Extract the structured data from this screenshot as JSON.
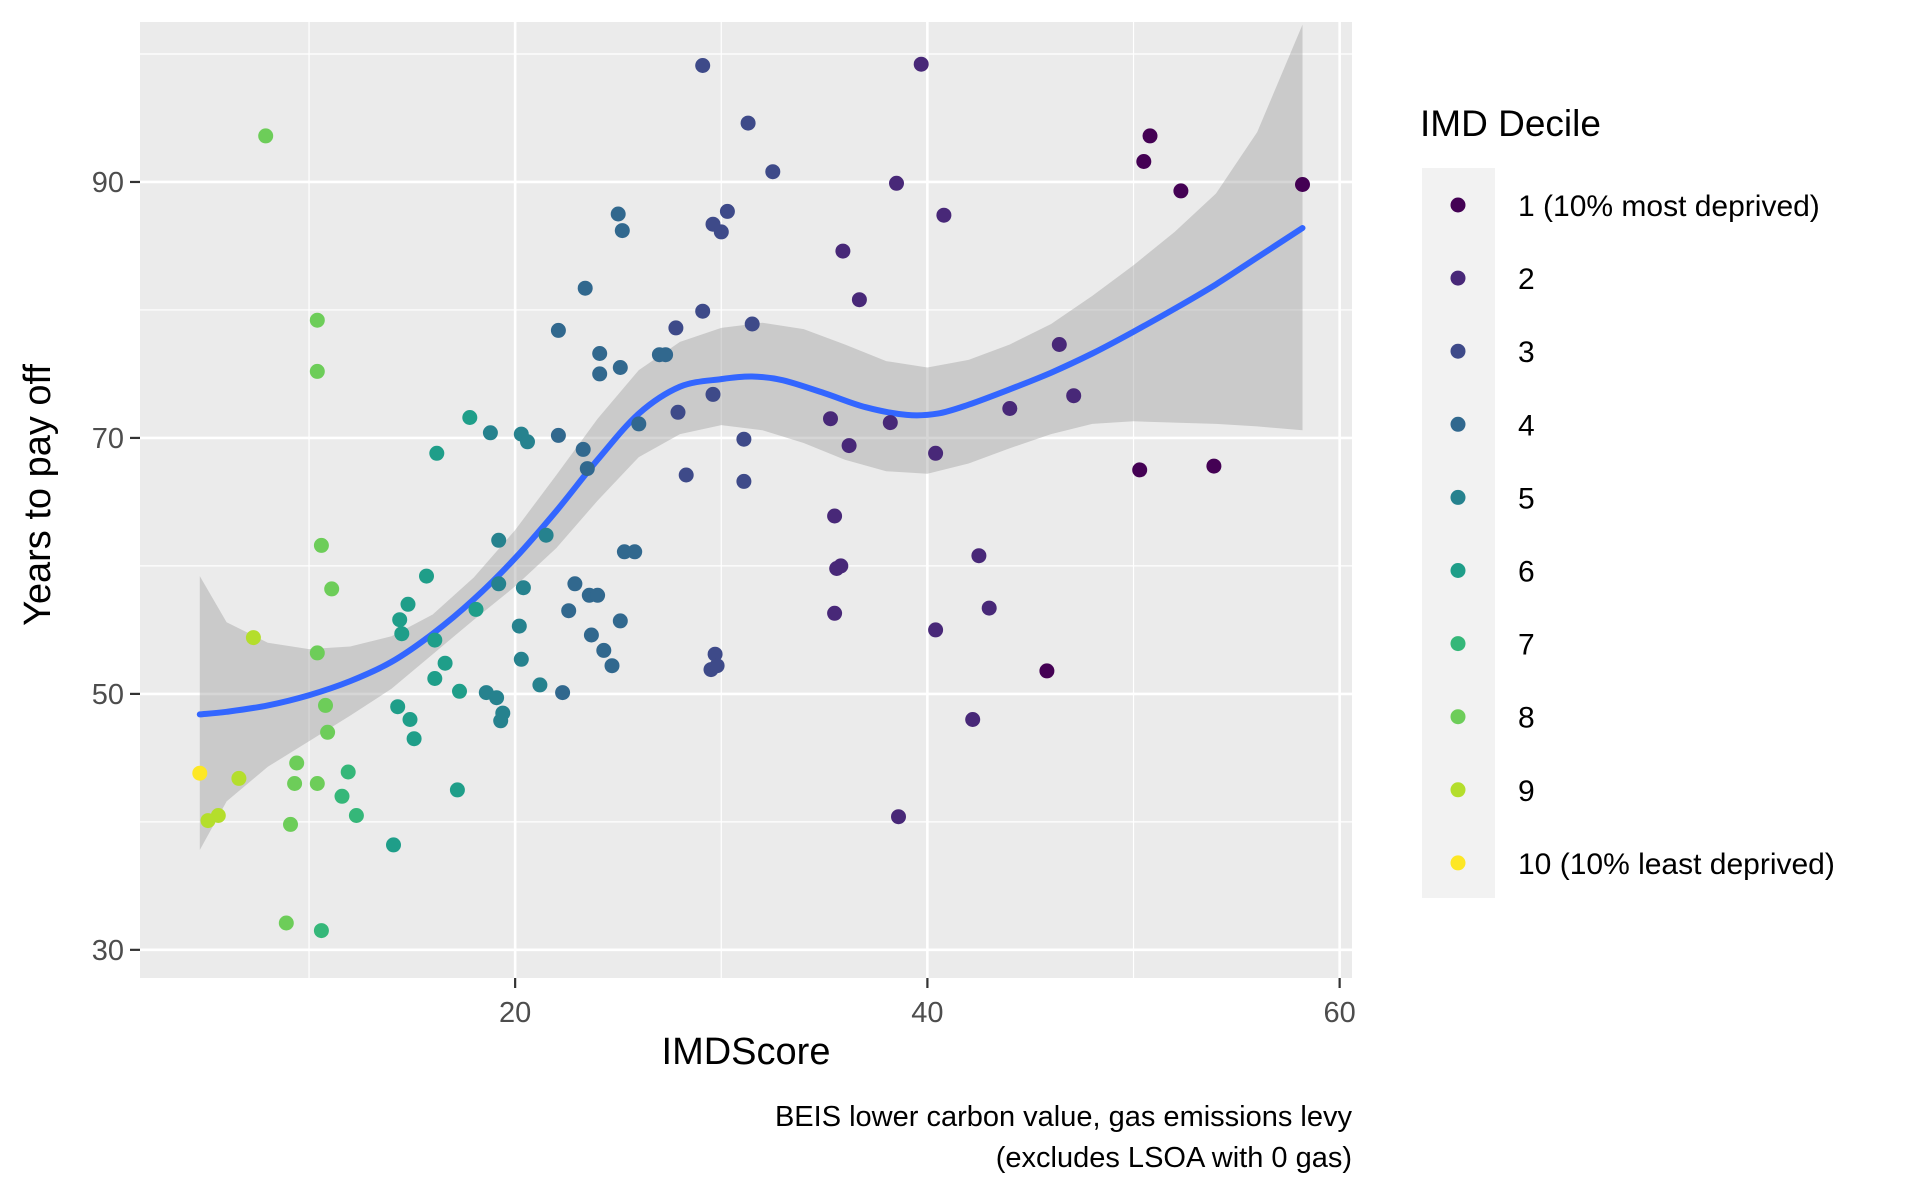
{
  "chart_data": {
    "type": "scatter",
    "xlabel": "IMDScore",
    "ylabel": "Years to pay off",
    "caption_lines": [
      "BEIS lower carbon value, gas emissions levy",
      "(excludes LSOA with 0 gas)"
    ],
    "xlim": [
      1.8,
      60.6
    ],
    "ylim": [
      27.8,
      102.5
    ],
    "x_ticks": [
      20,
      40,
      60
    ],
    "y_ticks": [
      30,
      50,
      70,
      90
    ],
    "x_tick_labels": [
      "20",
      "40",
      "60"
    ],
    "y_tick_labels": [
      "30",
      "50",
      "70",
      "90"
    ],
    "grid": true,
    "legend": {
      "title": "IMD Decile",
      "position": "right",
      "entries": [
        {
          "label": "1 (10% most deprived)",
          "color": "#440154"
        },
        {
          "label": "2",
          "color": "#482878"
        },
        {
          "label": "3",
          "color": "#3E4A89"
        },
        {
          "label": "4",
          "color": "#31688E"
        },
        {
          "label": "5",
          "color": "#26828E"
        },
        {
          "label": "6",
          "color": "#1F9E89"
        },
        {
          "label": "7",
          "color": "#35B779"
        },
        {
          "label": "8",
          "color": "#6DCD59"
        },
        {
          "label": "9",
          "color": "#B4DE2C"
        },
        {
          "label": "10 (10% least deprived)",
          "color": "#FDE725"
        }
      ]
    },
    "series": [
      {
        "decile": 1,
        "points": [
          [
            50.8,
            93.6
          ],
          [
            50.5,
            91.6
          ],
          [
            52.3,
            89.3
          ],
          [
            58.2,
            89.8
          ],
          [
            50.3,
            67.5
          ],
          [
            53.9,
            67.8
          ],
          [
            45.8,
            51.8
          ]
        ]
      },
      {
        "decile": 2,
        "points": [
          [
            39.7,
            99.2
          ],
          [
            38.5,
            89.9
          ],
          [
            40.8,
            87.4
          ],
          [
            35.9,
            84.6
          ],
          [
            36.7,
            80.8
          ],
          [
            46.4,
            77.3
          ],
          [
            47.1,
            73.3
          ],
          [
            44,
            72.3
          ],
          [
            35.3,
            71.5
          ],
          [
            36.2,
            69.4
          ],
          [
            38.2,
            71.2
          ],
          [
            40.4,
            68.8
          ],
          [
            35.5,
            63.9
          ],
          [
            35.6,
            59.8
          ],
          [
            35.8,
            60
          ],
          [
            35.5,
            56.3
          ],
          [
            42.5,
            60.8
          ],
          [
            43,
            56.7
          ],
          [
            40.4,
            55
          ],
          [
            42.2,
            48
          ],
          [
            38.6,
            40.4
          ]
        ]
      },
      {
        "decile": 3,
        "points": [
          [
            29.1,
            99.1
          ],
          [
            31.3,
            94.6
          ],
          [
            32.5,
            90.8
          ],
          [
            29.6,
            86.7
          ],
          [
            30.3,
            87.7
          ],
          [
            30,
            86.1
          ],
          [
            31.5,
            78.9
          ],
          [
            29.1,
            79.9
          ],
          [
            27.8,
            78.6
          ],
          [
            29.6,
            73.4
          ],
          [
            27.9,
            72
          ],
          [
            31.1,
            69.9
          ],
          [
            31.1,
            66.6
          ],
          [
            28.3,
            67.1
          ],
          [
            29.7,
            53.1
          ],
          [
            29.5,
            51.9
          ],
          [
            29.8,
            52.2
          ]
        ]
      },
      {
        "decile": 4,
        "points": [
          [
            25,
            87.5
          ],
          [
            25.2,
            86.2
          ],
          [
            23.4,
            81.7
          ],
          [
            22.1,
            78.4
          ],
          [
            24.1,
            76.6
          ],
          [
            24.1,
            75
          ],
          [
            25.1,
            75.5
          ],
          [
            27,
            76.5
          ],
          [
            27.3,
            76.5
          ],
          [
            26,
            71.1
          ],
          [
            22.1,
            70.2
          ],
          [
            23.3,
            69.1
          ],
          [
            23.5,
            67.6
          ],
          [
            25.3,
            61.1
          ],
          [
            25.8,
            61.1
          ],
          [
            22.9,
            58.6
          ],
          [
            23.6,
            57.7
          ],
          [
            24,
            57.7
          ],
          [
            22.6,
            56.5
          ],
          [
            23.7,
            54.6
          ],
          [
            24.3,
            53.4
          ],
          [
            25.1,
            55.7
          ],
          [
            24.7,
            52.2
          ],
          [
            22.3,
            50.1
          ]
        ]
      },
      {
        "decile": 5,
        "points": [
          [
            18.8,
            70.4
          ],
          [
            20.3,
            70.3
          ],
          [
            20.6,
            69.7
          ],
          [
            19.2,
            62
          ],
          [
            21.5,
            62.4
          ],
          [
            19.2,
            58.6
          ],
          [
            20.4,
            58.3
          ],
          [
            20.2,
            55.3
          ],
          [
            20.3,
            52.7
          ],
          [
            21.2,
            50.7
          ],
          [
            18.6,
            50.1
          ],
          [
            19.1,
            49.7
          ],
          [
            19.4,
            48.5
          ],
          [
            19.3,
            47.9
          ]
        ]
      },
      {
        "decile": 6,
        "points": [
          [
            17.8,
            71.6
          ],
          [
            16.2,
            68.8
          ],
          [
            15.7,
            59.2
          ],
          [
            18.1,
            56.6
          ],
          [
            14.8,
            57
          ],
          [
            14.4,
            55.8
          ],
          [
            14.5,
            54.7
          ],
          [
            16.1,
            54.2
          ],
          [
            16.6,
            52.4
          ],
          [
            16.1,
            51.2
          ],
          [
            17.3,
            50.2
          ],
          [
            14.3,
            49
          ],
          [
            14.9,
            48
          ],
          [
            15.1,
            46.5
          ],
          [
            17.2,
            42.5
          ],
          [
            14.1,
            38.2
          ]
        ]
      },
      {
        "decile": 7,
        "points": [
          [
            11.9,
            43.9
          ],
          [
            11.6,
            42
          ],
          [
            12.3,
            40.5
          ],
          [
            10.6,
            31.5
          ]
        ]
      },
      {
        "decile": 8,
        "points": [
          [
            7.9,
            93.6
          ],
          [
            10.4,
            79.2
          ],
          [
            10.4,
            75.2
          ],
          [
            10.6,
            61.6
          ],
          [
            11.1,
            58.2
          ],
          [
            10.4,
            53.2
          ],
          [
            10.8,
            49.1
          ],
          [
            10.9,
            47
          ],
          [
            9.4,
            44.6
          ],
          [
            9.3,
            43
          ],
          [
            10.4,
            43
          ],
          [
            9.1,
            39.8
          ],
          [
            8.9,
            32.1
          ]
        ]
      },
      {
        "decile": 9,
        "points": [
          [
            7.3,
            54.4
          ],
          [
            6.6,
            43.4
          ],
          [
            5.6,
            40.5
          ],
          [
            5.1,
            40.1
          ]
        ]
      },
      {
        "decile": 10,
        "points": [
          [
            4.7,
            43.8
          ]
        ]
      }
    ],
    "smooth_curve": [
      [
        4.7,
        48.4
      ],
      [
        6,
        48.6
      ],
      [
        8,
        49.1
      ],
      [
        10,
        49.9
      ],
      [
        12,
        51
      ],
      [
        14,
        52.5
      ],
      [
        16,
        54.7
      ],
      [
        18,
        57.4
      ],
      [
        20,
        60.6
      ],
      [
        22,
        64.3
      ],
      [
        24,
        68.3
      ],
      [
        26,
        71.9
      ],
      [
        28,
        74
      ],
      [
        30,
        74.6
      ],
      [
        31.5,
        74.8
      ],
      [
        33,
        74.5
      ],
      [
        35,
        73.5
      ],
      [
        37,
        72.4
      ],
      [
        39,
        71.8
      ],
      [
        40.5,
        71.9
      ],
      [
        42,
        72.6
      ],
      [
        44,
        73.8
      ],
      [
        46,
        75.1
      ],
      [
        48,
        76.6
      ],
      [
        50,
        78.3
      ],
      [
        52,
        80.1
      ],
      [
        54,
        82
      ],
      [
        56,
        84.1
      ],
      [
        58.2,
        86.4
      ]
    ],
    "confidence_band": {
      "upper": [
        [
          4.7,
          59.2
        ],
        [
          6,
          55.6
        ],
        [
          8,
          54
        ],
        [
          10,
          53.5
        ],
        [
          12,
          53.7
        ],
        [
          14,
          54.5
        ],
        [
          16,
          56.2
        ],
        [
          18,
          59.1
        ],
        [
          20,
          62.8
        ],
        [
          22,
          67.1
        ],
        [
          24,
          71.5
        ],
        [
          26,
          75.3
        ],
        [
          28,
          77.5
        ],
        [
          30,
          78.6
        ],
        [
          32,
          79
        ],
        [
          34,
          78.5
        ],
        [
          36,
          77.3
        ],
        [
          38,
          76
        ],
        [
          40,
          75.5
        ],
        [
          42,
          76.1
        ],
        [
          44,
          77.3
        ],
        [
          46,
          78.9
        ],
        [
          48,
          81.1
        ],
        [
          50,
          83.5
        ],
        [
          52,
          86.1
        ],
        [
          54,
          89.1
        ],
        [
          56,
          93.9
        ],
        [
          58.2,
          102.3
        ]
      ],
      "lower": [
        [
          4.7,
          37.8
        ],
        [
          6,
          41.6
        ],
        [
          8,
          44.3
        ],
        [
          10,
          46.3
        ],
        [
          12,
          48.3
        ],
        [
          14,
          50.4
        ],
        [
          16,
          53.1
        ],
        [
          18,
          55.8
        ],
        [
          20,
          58.4
        ],
        [
          22,
          61.4
        ],
        [
          24,
          65.1
        ],
        [
          26,
          68.5
        ],
        [
          28,
          70.3
        ],
        [
          30,
          71
        ],
        [
          32,
          70.6
        ],
        [
          34,
          69.6
        ],
        [
          36,
          68.3
        ],
        [
          38,
          67.4
        ],
        [
          40,
          67.2
        ],
        [
          42,
          68
        ],
        [
          44,
          69.2
        ],
        [
          46,
          70.3
        ],
        [
          48,
          71.1
        ],
        [
          50,
          71.3
        ],
        [
          52,
          71.2
        ],
        [
          54,
          71.1
        ],
        [
          56,
          70.9
        ],
        [
          58.2,
          70.6
        ]
      ]
    },
    "smooth_color": "#3366FF",
    "band_color": "#999999",
    "panel_color": "#EBEBEB"
  }
}
